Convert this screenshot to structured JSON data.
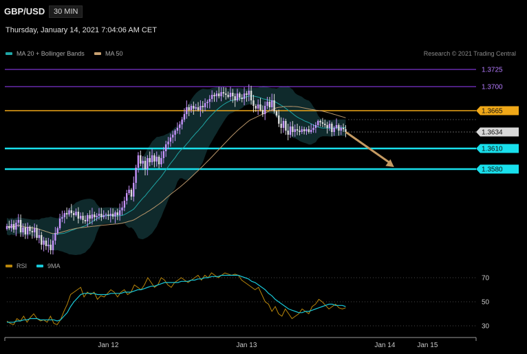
{
  "header": {
    "pair": "GBP/USD",
    "timeframe": "30 MIN",
    "datetime": "Thursday, January 14, 2021 7:04:06 AM CET",
    "credit": "Research © 2021 Trading Central"
  },
  "colors": {
    "up": "#c894ff",
    "down": "#dcdcdc",
    "band": "#0f2a2c",
    "ma20": "#1fa6a6",
    "ma50": "#b8956a",
    "support": "#18e0ec",
    "resistance": "#f0a818",
    "purple": "#9a40ff",
    "arrow": "#c49a62",
    "rsi": "#b8860b",
    "rsi_ma": "#18c8d8"
  },
  "chart_data": [
    {
      "type": "candlestick",
      "title": "GBP/USD",
      "legend": [
        {
          "name": "MA 20 + Bollinger Bands",
          "color": "#1fa6a6"
        },
        {
          "name": "MA 50",
          "color": "#c8a070"
        }
      ],
      "ylim": [
        1.344,
        1.3748
      ],
      "x_ticks": [
        "Jan 12",
        "Jan 13",
        "Jan 14",
        "Jan 15"
      ],
      "x_tick_index": [
        44,
        104,
        164,
        182.5
      ],
      "closes": [
        1.3497,
        1.3494,
        1.35,
        1.3492,
        1.3502,
        1.3506,
        1.3488,
        1.3495,
        1.3485,
        1.3496,
        1.349,
        1.3488,
        1.3494,
        1.348,
        1.3484,
        1.347,
        1.3476,
        1.3468,
        1.347,
        1.3462,
        1.3476,
        1.3487,
        1.3494,
        1.3508,
        1.351,
        1.3516,
        1.3514,
        1.352,
        1.3516,
        1.3513,
        1.3518,
        1.3508,
        1.3512,
        1.3506,
        1.3504,
        1.3513,
        1.3508,
        1.3514,
        1.351,
        1.3512,
        1.3515,
        1.351,
        1.3513,
        1.3514,
        1.3512,
        1.3515,
        1.3511,
        1.3517,
        1.3513,
        1.352,
        1.3524,
        1.3534,
        1.3545,
        1.355,
        1.354,
        1.356,
        1.3582,
        1.36,
        1.3588,
        1.3592,
        1.358,
        1.3596,
        1.359,
        1.36,
        1.3591,
        1.3598,
        1.3587,
        1.3596,
        1.3606,
        1.3616,
        1.362,
        1.3626,
        1.363,
        1.3636,
        1.364,
        1.3645,
        1.3652,
        1.366,
        1.367,
        1.3666,
        1.3672,
        1.3668,
        1.367,
        1.3666,
        1.3672,
        1.367,
        1.3676,
        1.3678,
        1.3682,
        1.3688,
        1.3686,
        1.369,
        1.3686,
        1.3692,
        1.369,
        1.3688,
        1.3685,
        1.3691,
        1.3686,
        1.368,
        1.369,
        1.3684,
        1.3682,
        1.369,
        1.3688,
        1.3694,
        1.368,
        1.3672,
        1.3668,
        1.3674,
        1.3666,
        1.366,
        1.3672,
        1.3678,
        1.367,
        1.368,
        1.3664,
        1.3658,
        1.3646,
        1.364,
        1.365,
        1.3636,
        1.363,
        1.3642,
        1.3634,
        1.3638,
        1.3636,
        1.3634,
        1.3638,
        1.3635,
        1.3638,
        1.3634,
        1.3637,
        1.364,
        1.3644,
        1.365,
        1.3648,
        1.3646,
        1.3644,
        1.364,
        1.3646,
        1.3634,
        1.364,
        1.3644,
        1.3636,
        1.364,
        1.3638,
        1.3634
      ],
      "resistance_levels": [
        1.3665
      ],
      "support_levels": [
        1.361,
        1.358
      ],
      "other_levels": [
        1.3725,
        1.37
      ],
      "last_price": 1.3634,
      "price_labels": [
        "1.3725",
        "1.3700",
        "1.3665",
        "1.3634",
        "1.3610",
        "1.3580"
      ],
      "forecast_arrow": {
        "from": {
          "index": 147,
          "price": 1.3634
        },
        "to": {
          "index": 168,
          "price": 1.3583
        }
      }
    },
    {
      "type": "line",
      "title": "RSI",
      "legend": [
        {
          "name": "RSI",
          "color": "#b8860b"
        },
        {
          "name": "9MA",
          "color": "#18c8d8"
        }
      ],
      "ylim": [
        22,
        78
      ],
      "y_ticks": [
        30,
        50,
        70
      ],
      "series": [
        {
          "name": "RSI",
          "values": [
            34,
            32,
            31,
            36,
            34,
            38,
            33,
            37,
            40,
            36,
            34,
            35,
            33,
            38,
            32,
            31,
            35,
            42,
            48,
            56,
            58,
            60,
            62,
            54,
            58,
            56,
            58,
            52,
            55,
            54,
            57,
            60,
            58,
            54,
            58,
            60,
            56,
            58,
            64,
            62,
            60,
            64,
            70,
            66,
            62,
            64,
            70,
            68,
            64,
            62,
            66,
            68,
            70,
            68,
            66,
            68,
            70,
            72,
            68,
            72,
            70,
            74,
            72,
            70,
            72,
            74,
            73,
            72,
            73,
            72,
            68,
            66,
            64,
            62,
            60,
            62,
            56,
            50,
            48,
            42,
            46,
            40,
            38,
            44,
            40,
            36,
            38,
            40,
            44,
            42,
            40,
            46,
            48,
            52,
            50,
            47,
            44,
            46,
            48,
            45,
            44,
            45
          ]
        },
        {
          "name": "9MA",
          "values": [
            33,
            33,
            33,
            34,
            34,
            35,
            35,
            36,
            36,
            36,
            35,
            35,
            35,
            35,
            35,
            34,
            35,
            38,
            41,
            46,
            50,
            53,
            56,
            57,
            57,
            57,
            57,
            56,
            56,
            56,
            56,
            57,
            57,
            57,
            57,
            58,
            58,
            58,
            59,
            60,
            60,
            61,
            62,
            63,
            63,
            64,
            65,
            66,
            66,
            66,
            66,
            66,
            67,
            67,
            67,
            68,
            68,
            69,
            69,
            70,
            70,
            71,
            71,
            71,
            72,
            72,
            72,
            72,
            72,
            72,
            71,
            70,
            69,
            67,
            66,
            64,
            62,
            60,
            57,
            55,
            52,
            50,
            48,
            46,
            44,
            43,
            42,
            41,
            41,
            42,
            42,
            43,
            44,
            45,
            46,
            47,
            48,
            48,
            47,
            47,
            47,
            46
          ]
        }
      ]
    }
  ]
}
